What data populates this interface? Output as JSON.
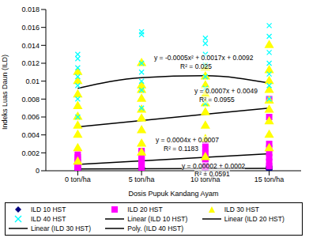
{
  "chart_data": {
    "type": "scatter",
    "x_label": "Dosis Pupuk Kandang Ayam",
    "y_label": "Indeks Luas Daun (ILD)",
    "categories": [
      "0 ton/ha",
      "5 ton/ha",
      "10 ton/ha",
      "15 ton/ha"
    ],
    "ylim": [
      0,
      0.018
    ],
    "yticks": [
      0,
      0.002,
      0.004,
      0.006,
      0.008,
      0.01,
      0.012,
      0.014,
      0.016,
      0.018
    ],
    "grid": false,
    "legend": "bottom",
    "annotations": [
      "y = -0.0005x² + 0.0017x + 0.0092",
      "R² = 0.025",
      "y = 0.0007x + 0.0049",
      "R² = 0.0955",
      "y = 0.0004x + 0.0007",
      "R² = 0.1183",
      "y = 0.00002 + 0.0002",
      "R² = 0.0591"
    ],
    "series": [
      {
        "name": "ILD 10 HST",
        "type": "scatter",
        "color": "#000080",
        "marker": "diamond",
        "values": [
          [
            0.0001,
            0.0002,
            0.0003,
            0.0002,
            0.0001,
            0.0004
          ],
          [
            0.0001,
            0.0002,
            0.0003,
            0.0002,
            0.0003,
            0.0004
          ],
          [
            0.0001,
            0.0002,
            0.0003,
            0.0002,
            0.0004,
            0.0003
          ],
          [
            0.0001,
            0.0002,
            0.0003,
            0.0002,
            0.0004,
            0.0005
          ]
        ]
      },
      {
        "name": "ILD 20 HST",
        "type": "scatter",
        "color": "#ff00ff",
        "marker": "square",
        "values": [
          [
            0.0002,
            0.0005,
            0.0008,
            0.001,
            0.0012,
            0.0015,
            0.0018,
            0.0004
          ],
          [
            0.0003,
            0.0006,
            0.001,
            0.0014,
            0.0017,
            0.002,
            0.0022,
            0.0012
          ],
          [
            0.0004,
            0.0008,
            0.0012,
            0.0016,
            0.002,
            0.0024,
            0.0013,
            0.003
          ],
          [
            0.0005,
            0.001,
            0.0015,
            0.002,
            0.0025,
            0.003,
            0.006,
            0.008
          ]
        ]
      },
      {
        "name": "ILD 30 HST",
        "type": "scatter",
        "color": "#ffff00",
        "marker": "triangle",
        "values": [
          [
            0.001,
            0.0025,
            0.004,
            0.005,
            0.006,
            0.0072,
            0.0085,
            0.01,
            0.011
          ],
          [
            0.002,
            0.003,
            0.0045,
            0.0058,
            0.0068,
            0.008,
            0.009,
            0.0095,
            0.012
          ],
          [
            0.0015,
            0.0035,
            0.005,
            0.0065,
            0.0075,
            0.0085,
            0.0095,
            0.0105,
            0.0115
          ],
          [
            0.0025,
            0.004,
            0.0055,
            0.0068,
            0.0078,
            0.009,
            0.01,
            0.0112,
            0.014
          ]
        ]
      },
      {
        "name": "ILD 40 HST",
        "type": "scatter",
        "color": "#00ffff",
        "marker": "x",
        "values": [
          [
            0.006,
            0.008,
            0.0095,
            0.0105,
            0.0115,
            0.0125,
            0.013
          ],
          [
            0.007,
            0.009,
            0.01,
            0.011,
            0.012,
            0.0152,
            0.0155
          ],
          [
            0.0075,
            0.0092,
            0.0105,
            0.0118,
            0.013,
            0.0142,
            0.0148
          ],
          [
            0.008,
            0.0095,
            0.0108,
            0.012,
            0.0132,
            0.015,
            0.0162
          ]
        ]
      },
      {
        "name": "Linear (ILD 10 HST)",
        "type": "line",
        "color": "#000000",
        "line_style": "solid",
        "values": [
          0.0002,
          0.00022,
          0.00024,
          0.00026
        ]
      },
      {
        "name": "Linear (ILD 20 HST)",
        "type": "line",
        "color": "#000000",
        "line_style": "solid",
        "values": [
          0.0007,
          0.0011,
          0.0015,
          0.0019
        ]
      },
      {
        "name": "Linear (ILD 30 HST)",
        "type": "line",
        "color": "#000000",
        "line_style": "solid",
        "values": [
          0.0049,
          0.0056,
          0.0063,
          0.007
        ]
      },
      {
        "name": "Poly. (ILD 40 HST)",
        "type": "line",
        "color": "#000000",
        "line_style": "smooth",
        "values": [
          0.0092,
          0.0104,
          0.0106,
          0.0098
        ]
      }
    ]
  }
}
